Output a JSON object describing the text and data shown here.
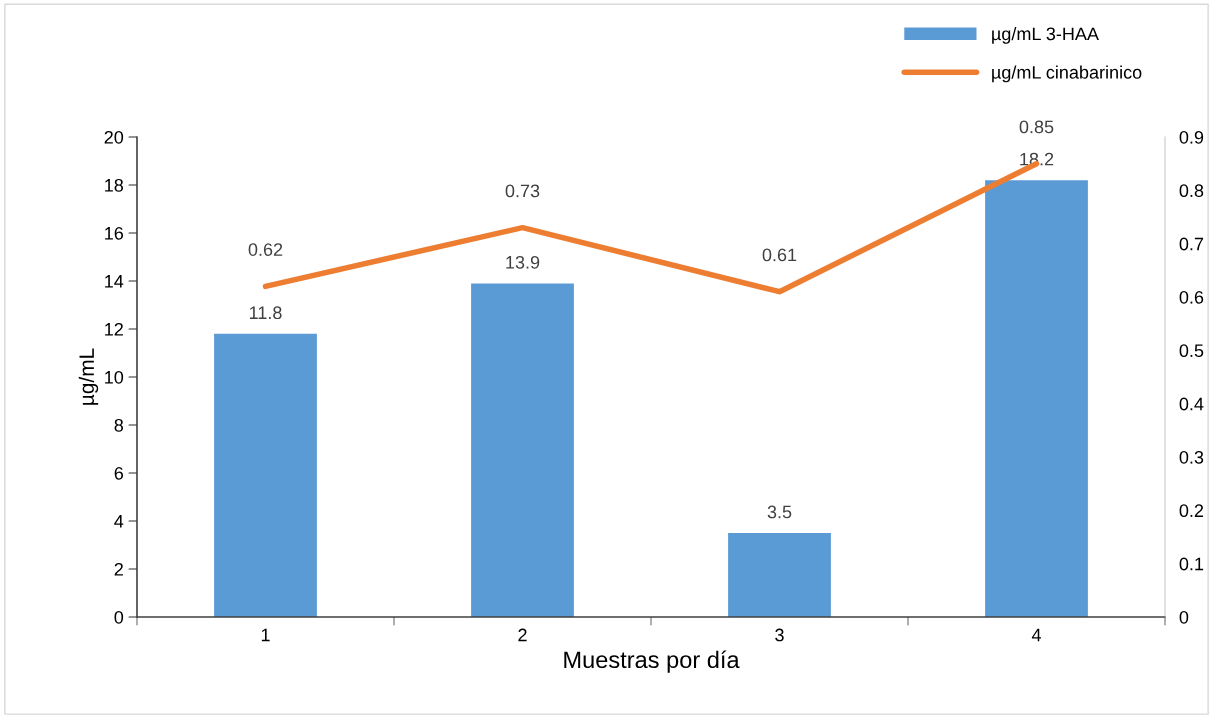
{
  "chart_data": {
    "type": "bar",
    "xlabel": "Muestras por día",
    "ylabel": "µg/mL",
    "categories": [
      "1",
      "2",
      "3",
      "4"
    ],
    "series": [
      {
        "name": "µg/mL 3-HAA",
        "color": "#5b9bd5",
        "values": [
          11.8,
          13.9,
          3.5,
          18.2
        ]
      },
      {
        "name": "µg/mL cinabarinico",
        "type": "line",
        "axis": "y2",
        "color": "#ed7d31",
        "values": [
          0.62,
          0.73,
          0.61,
          0.85
        ]
      }
    ],
    "ylim": [
      0,
      20
    ],
    "yticks": [
      0,
      2,
      4,
      6,
      8,
      10,
      12,
      14,
      16,
      18,
      20
    ],
    "y2lim": [
      0,
      0.9
    ],
    "y2ticks": [
      0,
      0.1,
      0.2,
      0.3,
      0.4,
      0.5,
      0.6,
      0.7,
      0.8,
      0.9
    ],
    "data_labels": true,
    "legend": "top right",
    "grid": false,
    "marker": "none",
    "line_style": "solid"
  }
}
